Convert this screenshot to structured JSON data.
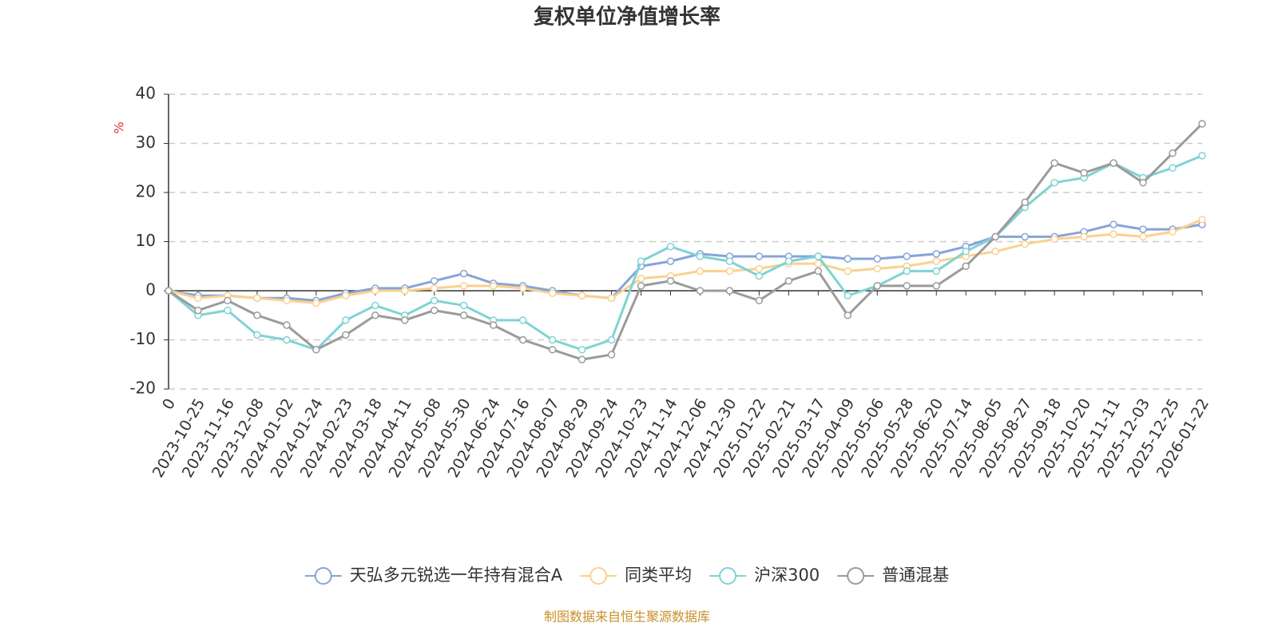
{
  "chart_data": {
    "type": "line",
    "title": "复权单位净值增长率",
    "y_label": "%",
    "source": "制图数据来自恒生聚源数据库",
    "categories": [
      "0",
      "2023-10-25",
      "2023-11-16",
      "2023-12-08",
      "2024-01-02",
      "2024-01-24",
      "2024-02-23",
      "2024-03-18",
      "2024-04-11",
      "2024-05-08",
      "2024-05-30",
      "2024-06-24",
      "2024-07-16",
      "2024-08-07",
      "2024-08-29",
      "2024-09-24",
      "2024-10-23",
      "2024-11-14",
      "2024-12-06",
      "2024-12-30",
      "2025-01-22",
      "2025-02-21",
      "2025-03-17",
      "2025-04-09",
      "2025-05-06",
      "2025-05-28",
      "2025-06-20",
      "2025-07-14",
      "2025-08-05",
      "2025-08-27",
      "2025-09-18",
      "2025-10-20",
      "2025-11-11",
      "2025-12-03",
      "2025-12-25",
      "2026-01-22"
    ],
    "series": [
      {
        "name": "天弘多元锐选一年持有混合A",
        "color": "#86a4d8",
        "values": [
          0,
          -1,
          -1,
          -1.5,
          -1.5,
          -2,
          -0.5,
          0.5,
          0.5,
          2,
          3.5,
          1.5,
          1,
          0,
          -1,
          -1.5,
          5,
          6,
          7.5,
          7,
          7,
          7,
          7,
          6.5,
          6.5,
          7,
          7.5,
          9,
          11,
          11,
          11,
          12,
          13.5,
          12.5,
          12.5,
          13.5
        ]
      },
      {
        "name": "同类平均",
        "color": "#fbd18e",
        "values": [
          0,
          -1.5,
          -1,
          -1.5,
          -2,
          -2.5,
          -1,
          0,
          0,
          0.5,
          1,
          1,
          0.5,
          -0.5,
          -1,
          -1.5,
          2.5,
          3,
          4,
          4,
          4.5,
          5.5,
          5.5,
          4,
          4.5,
          5,
          6,
          7,
          8,
          9.5,
          10.5,
          11,
          11.5,
          11,
          12,
          14.5
        ]
      },
      {
        "name": "沪深300",
        "color": "#7fd3d5",
        "values": [
          0,
          -5,
          -4,
          -9,
          -10,
          -12,
          -6,
          -3,
          -5,
          -2,
          -3,
          -6,
          -6,
          -10,
          -12,
          -10,
          6,
          9,
          7,
          6,
          3,
          6,
          7,
          -1,
          1,
          4,
          4,
          8,
          11,
          17,
          22,
          23,
          26,
          23,
          25,
          27.5
        ]
      },
      {
        "name": "普通混基",
        "color": "#9b9b9b",
        "values": [
          0,
          -4,
          -2,
          -5,
          -7,
          -12,
          -9,
          -5,
          -6,
          -4,
          -5,
          -7,
          -10,
          -12,
          -14,
          -13,
          1,
          2,
          0,
          0,
          -2,
          2,
          4,
          -5,
          1,
          1,
          1,
          5,
          11,
          18,
          26,
          24,
          26,
          22,
          28,
          34
        ]
      }
    ],
    "ylim": [
      -20,
      40
    ],
    "yticks": [
      -20,
      -10,
      0,
      10,
      20,
      30,
      40
    ],
    "grid": true
  }
}
